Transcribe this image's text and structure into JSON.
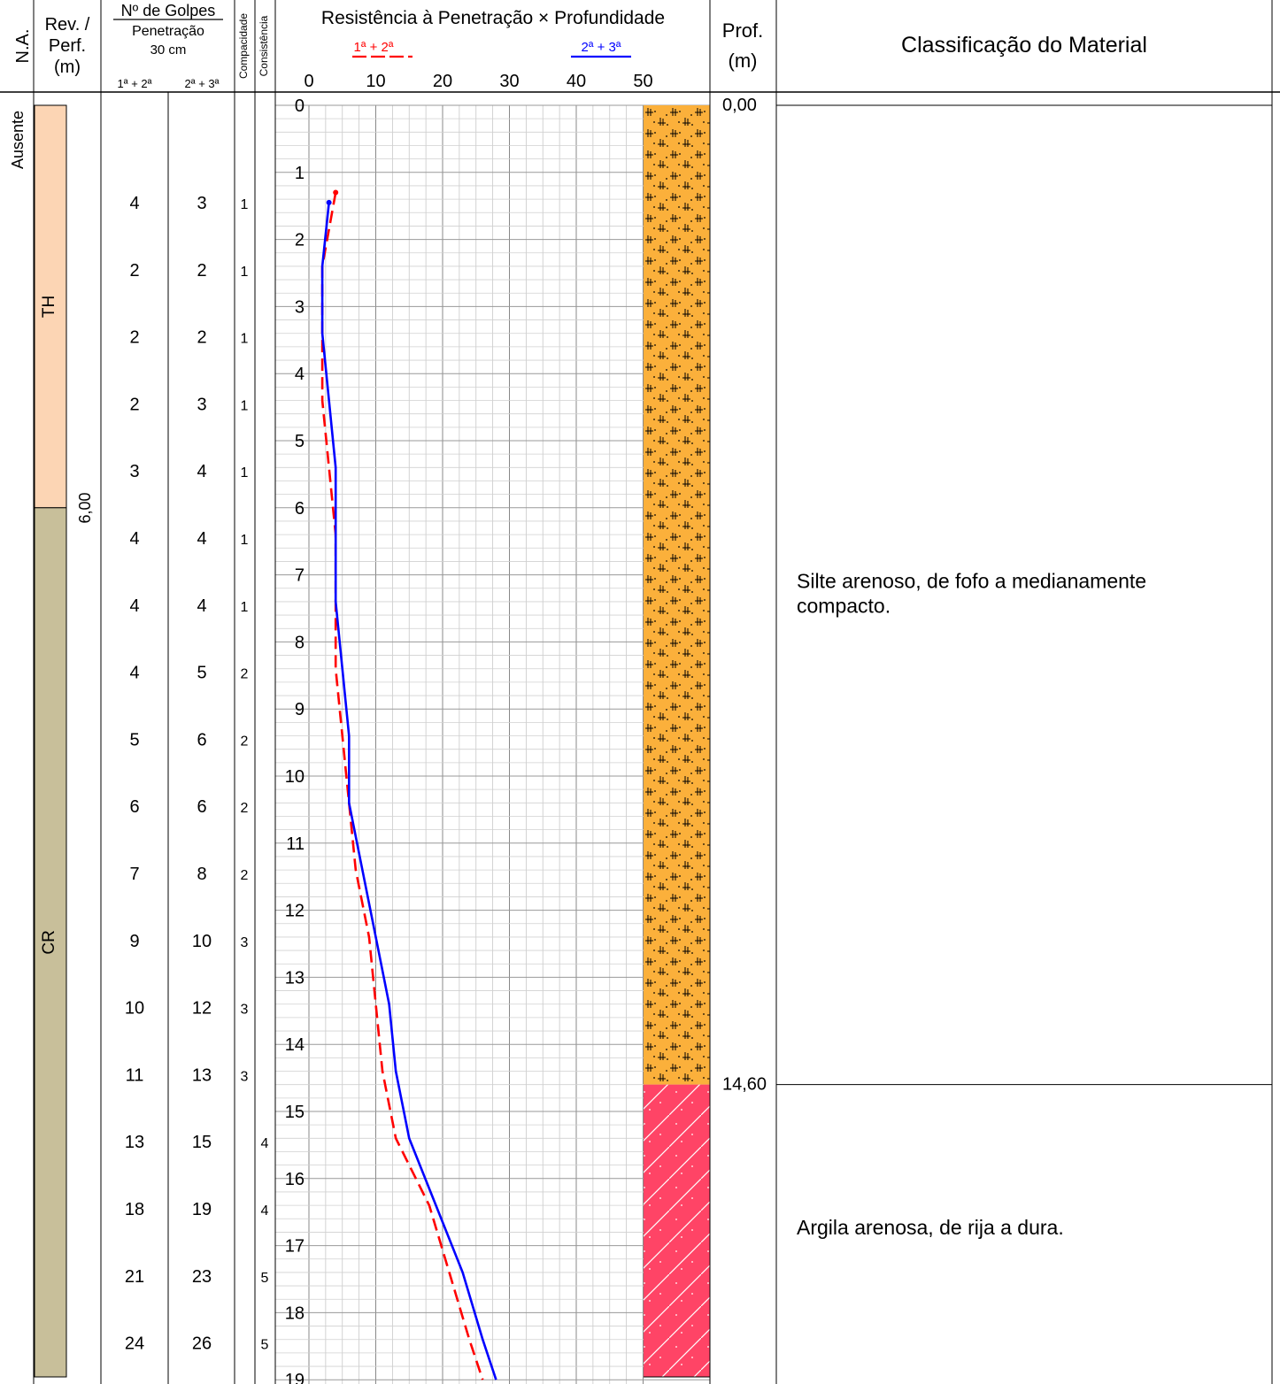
{
  "header": {
    "na": "N.A.",
    "rev_line1": "Rev. /",
    "rev_line2": "Perf.",
    "rev_line3": "(m)",
    "golpes_title": "Nº de Golpes",
    "golpes_penetracao": "Penetração",
    "golpes_30cm": "30 cm",
    "golpes_col1": "1ª + 2ª",
    "golpes_col2": "2ª + 3ª",
    "compacidade": "Compacidade",
    "consistencia": "Consistência",
    "chart_title": "Resistência à Penetração × Profundidade",
    "legend_red": "1ª + 2ª",
    "legend_blue": "2ª + 3ª",
    "prof_line1": "Prof.",
    "prof_line2": "(m)",
    "classificacao": "Classificação do Material"
  },
  "na_value": "Ausente",
  "revestimento_depth": "6,00",
  "strata": [
    {
      "label": "TH",
      "from": 0,
      "to": 6.0,
      "color": "#fcd5b4"
    },
    {
      "label": "CR",
      "from": 6.0,
      "to": 19.0,
      "color": "#c8bf9a"
    }
  ],
  "readings": [
    {
      "g12": "4",
      "g23": "3",
      "compacidade": "1",
      "consistencia": ""
    },
    {
      "g12": "2",
      "g23": "2",
      "compacidade": "1",
      "consistencia": ""
    },
    {
      "g12": "2",
      "g23": "2",
      "compacidade": "1",
      "consistencia": ""
    },
    {
      "g12": "2",
      "g23": "3",
      "compacidade": "1",
      "consistencia": ""
    },
    {
      "g12": "3",
      "g23": "4",
      "compacidade": "1",
      "consistencia": ""
    },
    {
      "g12": "4",
      "g23": "4",
      "compacidade": "1",
      "consistencia": ""
    },
    {
      "g12": "4",
      "g23": "4",
      "compacidade": "1",
      "consistencia": ""
    },
    {
      "g12": "4",
      "g23": "5",
      "compacidade": "2",
      "consistencia": ""
    },
    {
      "g12": "5",
      "g23": "6",
      "compacidade": "2",
      "consistencia": ""
    },
    {
      "g12": "6",
      "g23": "6",
      "compacidade": "2",
      "consistencia": ""
    },
    {
      "g12": "7",
      "g23": "8",
      "compacidade": "2",
      "consistencia": ""
    },
    {
      "g12": "9",
      "g23": "10",
      "compacidade": "3",
      "consistencia": ""
    },
    {
      "g12": "10",
      "g23": "12",
      "compacidade": "3",
      "consistencia": ""
    },
    {
      "g12": "11",
      "g23": "13",
      "compacidade": "3",
      "consistencia": ""
    },
    {
      "g12": "13",
      "g23": "15",
      "compacidade": "",
      "consistencia": "4"
    },
    {
      "g12": "18",
      "g23": "19",
      "compacidade": "",
      "consistencia": "4"
    },
    {
      "g12": "21",
      "g23": "23",
      "compacidade": "",
      "consistencia": "5"
    },
    {
      "g12": "24",
      "g23": "26",
      "compacidade": "",
      "consistencia": "5"
    }
  ],
  "layers": [
    {
      "top_label": "0,00",
      "description_line1": "Silte arenoso, de fofo a medianamente",
      "description_line2": "compacto.",
      "color": "#fbb03b",
      "pattern": "silt"
    },
    {
      "top_label": "14,60",
      "description_line1": "Argila arenosa, de rija a dura.",
      "description_line2": "",
      "color": "#ff4466",
      "pattern": "clay"
    }
  ],
  "chart_data": {
    "type": "line",
    "title": "Resistência à Penetração × Profundidade",
    "x_ticks": [
      "0",
      "10",
      "20",
      "30",
      "40",
      "50"
    ],
    "y_ticks": [
      "0",
      "1",
      "2",
      "3",
      "4",
      "5",
      "6",
      "7",
      "8",
      "9",
      "10",
      "11",
      "12",
      "13",
      "14",
      "15",
      "16",
      "17",
      "18",
      "19"
    ],
    "xlim": [
      0,
      50
    ],
    "ylim": [
      0,
      19
    ],
    "grid": true,
    "series": [
      {
        "name": "1ª + 2ª",
        "color": "#ff0000",
        "dash": true,
        "points": [
          [
            4,
            1.3
          ],
          [
            2,
            2.4
          ],
          [
            2,
            3.4
          ],
          [
            2,
            4.4
          ],
          [
            3,
            5.4
          ],
          [
            4,
            6.4
          ],
          [
            4,
            7.4
          ],
          [
            4,
            8.4
          ],
          [
            5,
            9.4
          ],
          [
            6,
            10.4
          ],
          [
            7,
            11.4
          ],
          [
            9,
            12.4
          ],
          [
            10,
            13.4
          ],
          [
            11,
            14.4
          ],
          [
            13,
            15.4
          ],
          [
            18,
            16.4
          ],
          [
            21,
            17.4
          ],
          [
            24,
            18.4
          ],
          [
            26,
            19.0
          ]
        ]
      },
      {
        "name": "2ª + 3ª",
        "color": "#0000ff",
        "dash": false,
        "points": [
          [
            3,
            1.45
          ],
          [
            2,
            2.4
          ],
          [
            2,
            3.4
          ],
          [
            3,
            4.4
          ],
          [
            4,
            5.4
          ],
          [
            4,
            6.4
          ],
          [
            4,
            7.4
          ],
          [
            5,
            8.4
          ],
          [
            6,
            9.4
          ],
          [
            6,
            10.4
          ],
          [
            8,
            11.4
          ],
          [
            10,
            12.4
          ],
          [
            12,
            13.4
          ],
          [
            13,
            14.4
          ],
          [
            15,
            15.4
          ],
          [
            19,
            16.4
          ],
          [
            23,
            17.4
          ],
          [
            26,
            18.4
          ],
          [
            28,
            19.0
          ]
        ]
      }
    ]
  }
}
